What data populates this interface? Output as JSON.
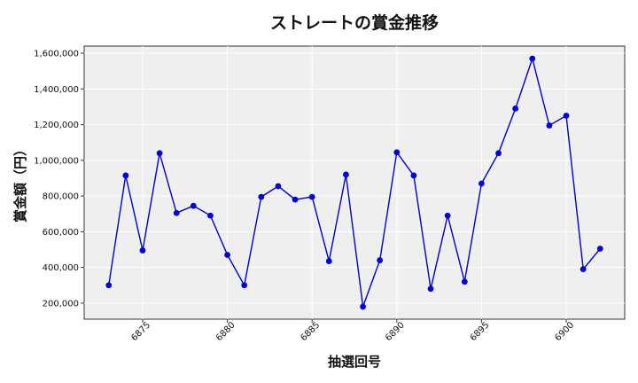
{
  "chart_data": {
    "type": "line",
    "title": "ストレートの賞金推移",
    "xlabel": "抽選回号",
    "ylabel": "賞金額（円）",
    "xlim": [
      6871.55,
      6903.45
    ],
    "ylim": [
      110000,
      1640000
    ],
    "xticks": [
      6875,
      6880,
      6885,
      6890,
      6895,
      6900
    ],
    "yticks": [
      200000,
      400000,
      600000,
      800000,
      1000000,
      1200000,
      1400000,
      1600000
    ],
    "ytick_labels": [
      "200,000",
      "400,000",
      "600,000",
      "800,000",
      "1,000,000",
      "1,200,000",
      "1,400,000",
      "1,600,000"
    ],
    "grid": true,
    "colors": {
      "line": "#0000cc",
      "marker": "#0000dd",
      "plot_bg": "#efefef",
      "grid": "#ffffff"
    },
    "series": [
      {
        "x": [
          6873,
          6874,
          6875,
          6876,
          6877,
          6878,
          6879,
          6880,
          6881,
          6882,
          6883,
          6884,
          6885,
          6886,
          6887,
          6888,
          6889,
          6890,
          6891,
          6892,
          6893,
          6894,
          6895,
          6896,
          6897,
          6898,
          6899,
          6900,
          6901,
          6902
        ],
        "values": [
          300000,
          915000,
          495000,
          1040000,
          705000,
          745000,
          690000,
          470000,
          300000,
          795000,
          855000,
          780000,
          795000,
          435000,
          920000,
          180000,
          440000,
          1045000,
          915000,
          280000,
          690000,
          320000,
          870000,
          1040000,
          1290000,
          1570000,
          1195000,
          1250000,
          390000,
          505000
        ]
      }
    ]
  }
}
